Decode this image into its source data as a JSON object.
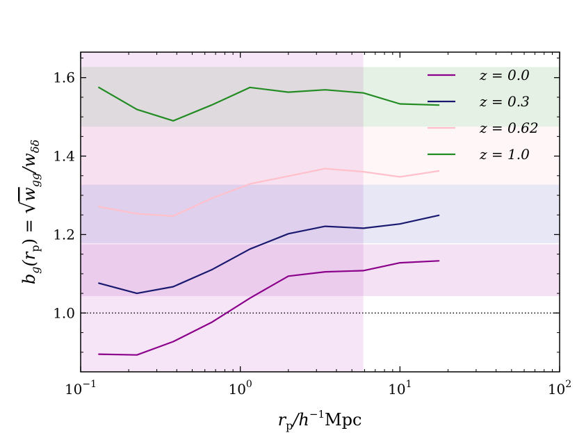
{
  "chart_data": {
    "type": "line",
    "title": "",
    "xlabel": "r_p / h^-1 Mpc",
    "xlabel_parts": {
      "main": "r",
      "sub": "p",
      "rest": "/h",
      "sup": "−1",
      "unit": "Mpc"
    },
    "ylabel": "b_g(r_p) = √(w_gg / w_δδ)",
    "ylabel_parts": {
      "lhs": "b",
      "lhs_sub": "g",
      "arg": "(r",
      "arg_sub": "p",
      "arg_end": ") = ",
      "num": "w",
      "num_sub": "gg",
      "den": "/w",
      "den_sub": "δδ"
    },
    "xscale": "log",
    "xlim": [
      0.1,
      100
    ],
    "ylim": [
      0.85,
      1.665
    ],
    "x_ticks": [
      {
        "value": 0.1,
        "base": "10",
        "exp": "−1"
      },
      {
        "value": 1,
        "base": "10",
        "exp": "0"
      },
      {
        "value": 10,
        "base": "10",
        "exp": "1"
      },
      {
        "value": 100,
        "base": "10",
        "exp": "2"
      }
    ],
    "y_ticks": [
      {
        "value": 1.0,
        "label": "1.0"
      },
      {
        "value": 1.2,
        "label": "1.2"
      },
      {
        "value": 1.4,
        "label": "1.4"
      },
      {
        "value": 1.6,
        "label": "1.6"
      }
    ],
    "reference_line": {
      "y": 1.0,
      "style": "dotted"
    },
    "vertical_band": {
      "x_range": [
        0.1,
        5.9
      ],
      "color": "#e5b5e5",
      "opacity": 0.35
    },
    "horizontal_bands": [
      {
        "name": "z = 0.0",
        "y_range": [
          1.043,
          1.175
        ],
        "color": "#c060c0",
        "opacity": 0.18
      },
      {
        "name": "z = 0.3",
        "y_range": [
          1.178,
          1.327
        ],
        "color": "#7a7ac8",
        "opacity": 0.18
      },
      {
        "name": "z = 0.62",
        "y_range": [
          1.327,
          1.475
        ],
        "color": "#ffc0cb",
        "opacity": 0.15
      },
      {
        "name": "z = 1.0",
        "y_range": [
          1.475,
          1.627
        ],
        "color": "#2e8b2e",
        "opacity": 0.12
      }
    ],
    "x": [
      0.13,
      0.225,
      0.38,
      0.66,
      1.15,
      2.0,
      3.4,
      5.9,
      10,
      17.5
    ],
    "series": [
      {
        "name": "z = 0.0",
        "label": "z = 0.0",
        "color": "#8b008b",
        "values": [
          0.895,
          0.893,
          0.927,
          0.976,
          1.038,
          1.094,
          1.105,
          1.108,
          1.128,
          1.133
        ]
      },
      {
        "name": "z = 0.3",
        "label": "z = 0.3",
        "color": "#191970",
        "values": [
          1.076,
          1.05,
          1.067,
          1.11,
          1.163,
          1.202,
          1.221,
          1.216,
          1.227,
          1.249
        ]
      },
      {
        "name": "z = 0.62",
        "label": "z = 0.62",
        "color": "#ffc0cb",
        "values": [
          1.271,
          1.253,
          1.247,
          1.292,
          1.329,
          1.349,
          1.368,
          1.36,
          1.347,
          1.362
        ]
      },
      {
        "name": "z = 1.0",
        "label": "z = 1.0",
        "color": "#228b22",
        "values": [
          1.575,
          1.519,
          1.49,
          1.53,
          1.575,
          1.563,
          1.569,
          1.561,
          1.533,
          1.53
        ]
      }
    ],
    "legend": {
      "position": "top-right"
    }
  }
}
